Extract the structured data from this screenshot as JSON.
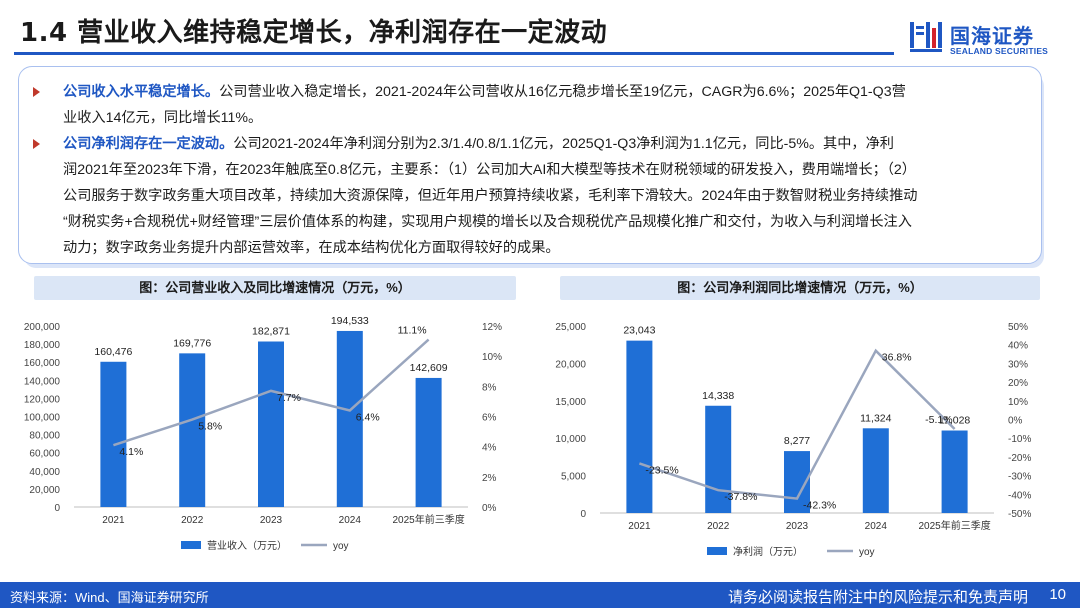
{
  "header": {
    "title": "1.4 营业收入维持稳定增长，净利润存在一定波动",
    "logo_cn": "国海证券",
    "logo_en": "SEALAND SECURITIES"
  },
  "summary": {
    "p1_highlight": "公司收入水平稳定增长。",
    "p1_line1": "公司营业收入稳定增长，2021-2024年公司营收从16亿元稳步增长至19亿元，CAGR为6.6%；2025年Q1-Q3营",
    "p1_line2": "业收入14亿元，同比增长11%。",
    "p2_highlight": "公司净利润存在一定波动。",
    "p2_line1": "公司2021-2024年净利润分别为2.3/1.4/0.8/1.1亿元，2025Q1-Q3净利润为1.1亿元，同比-5%。其中，净利",
    "p2_line2": "润2021年至2023年下滑，在2023年触底至0.8亿元，主要系：（1）公司加大AI和大模型等技术在财税领域的研发投入，费用端增长；（2）",
    "p2_line3": "公司服务于数字政务重大项目改革，持续加大资源保障，但近年用户预算持续收紧，毛利率下滑较大。2024年由于数智财税业务持续推动",
    "p2_line4": "“财税实务+合规税优+财经管理”三层价值体系的构建，实现用户规模的增长以及合规税优产品规模化推广和交付，为收入与利润增长注入",
    "p2_line5": "动力；数字政务业务提升内部运营效率，在成本结构优化方面取得较好的成果。"
  },
  "chart_data": [
    {
      "type": "bar",
      "title": "图：公司营业收入及同比增速情况（万元，%）",
      "categories": [
        "2021",
        "2022",
        "2023",
        "2024",
        "2025年前三季度"
      ],
      "series": [
        {
          "name": "营业收入（万元）",
          "values": [
            160476,
            169776,
            182871,
            194533,
            142609
          ],
          "labels": [
            "160,476",
            "169,776",
            "182,871",
            "194,533",
            "142,609"
          ],
          "color": "#1f6fd6"
        },
        {
          "name": "yoy",
          "type": "line",
          "axis": "right",
          "values": [
            4.1,
            5.8,
            7.7,
            6.4,
            11.1
          ],
          "labels": [
            "4.1%",
            "5.8%",
            "7.7%",
            "6.4%",
            "11.1%"
          ],
          "color": "#9aa6be"
        }
      ],
      "ylim": [
        0,
        200000
      ],
      "y2lim": [
        0,
        12
      ],
      "yticks": [
        "0",
        "20,000",
        "40,000",
        "60,000",
        "80,000",
        "100,000",
        "120,000",
        "140,000",
        "160,000",
        "180,000",
        "200,000"
      ],
      "y2ticks": [
        "0%",
        "2%",
        "4%",
        "6%",
        "8%",
        "10%",
        "12%"
      ],
      "legend": "bottom"
    },
    {
      "type": "bar",
      "title": "图：公司净利润同比增速情况（万元，%）",
      "categories": [
        "2021",
        "2022",
        "2023",
        "2024",
        "2025年前三季度"
      ],
      "series": [
        {
          "name": "净利润（万元）",
          "values": [
            23043,
            14338,
            8277,
            11324,
            11028
          ],
          "labels": [
            "23,043",
            "14,338",
            "8,277",
            "11,324",
            "11,028"
          ],
          "color": "#1f6fd6"
        },
        {
          "name": "yoy",
          "type": "line",
          "axis": "right",
          "values": [
            -23.5,
            -37.8,
            -42.3,
            36.8,
            -5.1
          ],
          "labels": [
            "-23.5%",
            "-37.8%",
            "-42.3%",
            "36.8%",
            "-5.1%"
          ],
          "color": "#9aa6be"
        }
      ],
      "ylim": [
        0,
        25000
      ],
      "y2lim": [
        -50,
        50
      ],
      "yticks": [
        "0",
        "5,000",
        "10,000",
        "15,000",
        "20,000",
        "25,000"
      ],
      "y2ticks": [
        "-50%",
        "-40%",
        "-30%",
        "-20%",
        "-10%",
        "0%",
        "10%",
        "20%",
        "30%",
        "40%",
        "50%"
      ],
      "legend": "bottom"
    }
  ],
  "footer": {
    "source": "资料来源：Wind、国海证券研究所",
    "disclaimer": "请务必阅读报告附注中的风险提示和免责声明",
    "page": "10"
  },
  "colors": {
    "brand": "#1f57c3",
    "bar": "#1f6fd6",
    "line": "#9aa6be",
    "bullet": "#c0392b"
  }
}
